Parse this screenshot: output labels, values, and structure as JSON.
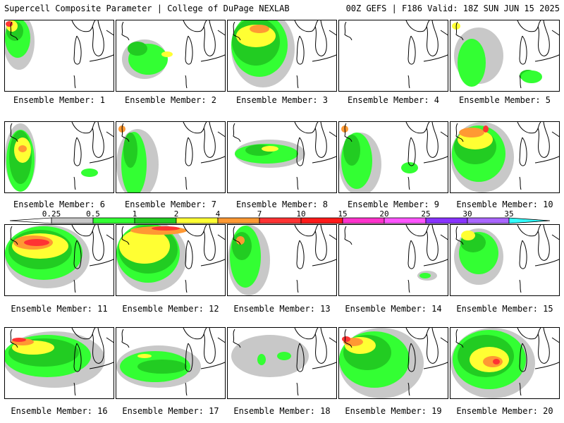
{
  "header": {
    "left": "Supercell Composite Parameter | College of DuPage NEXLAB",
    "right": "00Z GEFS | F186 Valid: 18Z SUN JUN 15 2025"
  },
  "colorbar": {
    "ticks": [
      "0.25",
      "0.5",
      "1",
      "2",
      "4",
      "7",
      "10",
      "15",
      "20",
      "25",
      "30",
      "35"
    ],
    "colors": [
      "#c8c8c8",
      "#33ff33",
      "#22cc22",
      "#ffff33",
      "#ff9933",
      "#ff3333",
      "#ff1a1a",
      "#ff33cc",
      "#ff55ff",
      "#8833ff",
      "#aa66ff",
      "#33ffff"
    ]
  },
  "members": [
    {
      "label": "Ensemble Member: 1"
    },
    {
      "label": "Ensemble Member: 2"
    },
    {
      "label": "Ensemble Member: 3"
    },
    {
      "label": "Ensemble Member: 4"
    },
    {
      "label": "Ensemble Member: 5"
    },
    {
      "label": "Ensemble Member: 6"
    },
    {
      "label": "Ensemble Member: 7"
    },
    {
      "label": "Ensemble Member: 8"
    },
    {
      "label": "Ensemble Member: 9"
    },
    {
      "label": "Ensemble Member: 10"
    },
    {
      "label": "Ensemble Member: 11"
    },
    {
      "label": "Ensemble Member: 12"
    },
    {
      "label": "Ensemble Member: 13"
    },
    {
      "label": "Ensemble Member: 14"
    },
    {
      "label": "Ensemble Member: 15"
    },
    {
      "label": "Ensemble Member: 16"
    },
    {
      "label": "Ensemble Member: 17"
    },
    {
      "label": "Ensemble Member: 18"
    },
    {
      "label": "Ensemble Member: 19"
    },
    {
      "label": "Ensemble Member: 20"
    }
  ]
}
